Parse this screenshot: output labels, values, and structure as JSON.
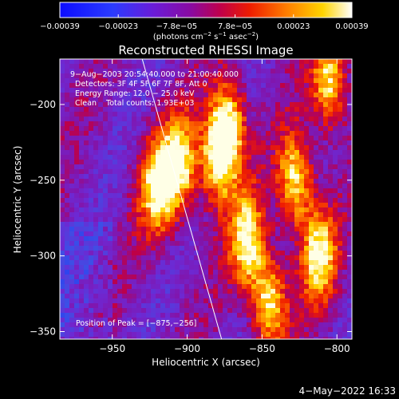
{
  "chart_data": {
    "type": "heatmap",
    "title": "Reconstructed RHESSI Image",
    "xlabel": "Heliocentric X (arcsec)",
    "ylabel": "Heliocentric Y (arcsec)",
    "xlim": [
      -985,
      -790
    ],
    "ylim": [
      -355,
      -170
    ],
    "x_ticks": [
      -950,
      -900,
      -850,
      -800
    ],
    "x_tick_labels": [
      "−950",
      "−900",
      "−850",
      "−800"
    ],
    "y_ticks": [
      -350,
      -300,
      -250,
      -200
    ],
    "y_tick_labels": [
      "−350",
      "−300",
      "−250",
      "−200"
    ],
    "colorbar": {
      "range": [
        -0.00039,
        0.00039
      ],
      "tick_labels": [
        "−0.00039",
        "−0.00023",
        "−7.8e−05",
        "7.8e−05",
        "0.00023",
        "0.00039"
      ],
      "units_prefix": "(photons cm",
      "units_exp1": "−2",
      "units_mid": " s",
      "units_exp2": "−1",
      "units_mid2": " asec",
      "units_exp3": "−2",
      "units_suffix": ")",
      "colors": [
        "#1010ff",
        "#7a00c8",
        "#d40040",
        "#ff8a00",
        "#ffffff"
      ]
    },
    "annotations": [
      "9−Aug−2003 20:54:40.000 to 21:00:40.000",
      "Detectors: 3F 4F 5F 6F 7F 8F, Att 0",
      "Energy Range: 12.0 − 25.0 keV",
      "Clean    Total counts: 1.93E+03"
    ],
    "peak_label": "Position of Peak = [−875,−256]",
    "peak": [
      -875,
      -256
    ],
    "limb_line": [
      [
        -930,
        -170
      ],
      [
        -877,
        -355
      ]
    ],
    "hot_spots": [
      {
        "x": -920,
        "y": -255
      },
      {
        "x": -905,
        "y": -240
      },
      {
        "x": -880,
        "y": -235
      },
      {
        "x": -872,
        "y": -215
      },
      {
        "x": -860,
        "y": -290
      },
      {
        "x": -845,
        "y": -330
      },
      {
        "x": -828,
        "y": -250
      },
      {
        "x": -812,
        "y": -300
      },
      {
        "x": -805,
        "y": -185
      }
    ]
  },
  "footer_date": "4−May−2022 16:33"
}
